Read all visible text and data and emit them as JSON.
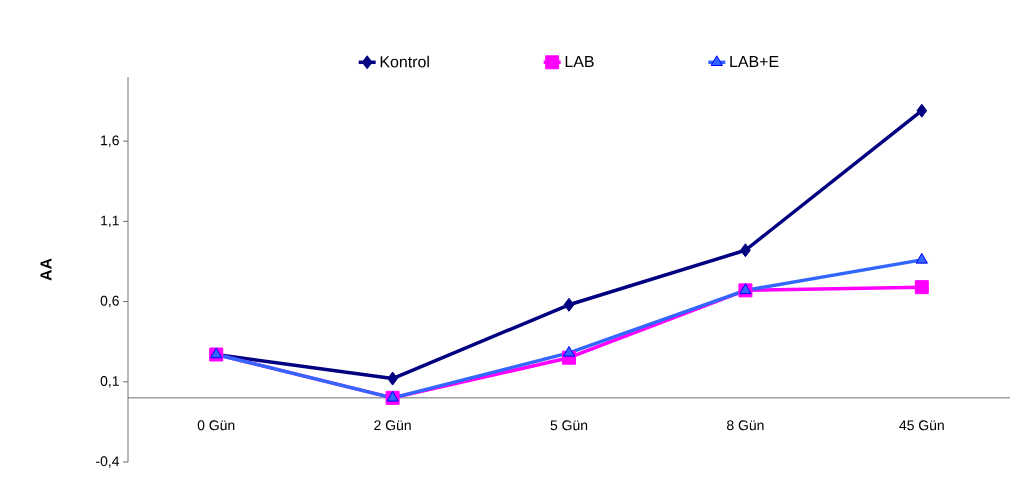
{
  "chart_data": {
    "type": "line",
    "ylabel": "AA",
    "categories": [
      "0 Gün",
      "2 Gün",
      "5 Gün",
      "8 Gün",
      "45 Gün"
    ],
    "series": [
      {
        "name": "Kontrol",
        "color": "#000080",
        "marker": "diamond",
        "values": [
          0.27,
          0.12,
          0.58,
          0.92,
          1.79
        ]
      },
      {
        "name": "LAB",
        "color": "#ff00ff",
        "marker": "square",
        "values": [
          0.27,
          0.0,
          0.25,
          0.67,
          0.69
        ]
      },
      {
        "name": "LAB+E",
        "color": "#3366ff",
        "marker": "triangle",
        "values": [
          0.27,
          0.0,
          0.28,
          0.67,
          0.86
        ]
      }
    ],
    "ylim": [
      -0.4,
      2.0
    ],
    "yticks": [
      {
        "value": -0.4,
        "label": "-0,4"
      },
      {
        "value": 0.1,
        "label": "0,1"
      },
      {
        "value": 0.6,
        "label": "0,6"
      },
      {
        "value": 1.1,
        "label": "1,1"
      },
      {
        "value": 1.6,
        "label": "1,6"
      }
    ],
    "grid": false,
    "legend": "top"
  }
}
